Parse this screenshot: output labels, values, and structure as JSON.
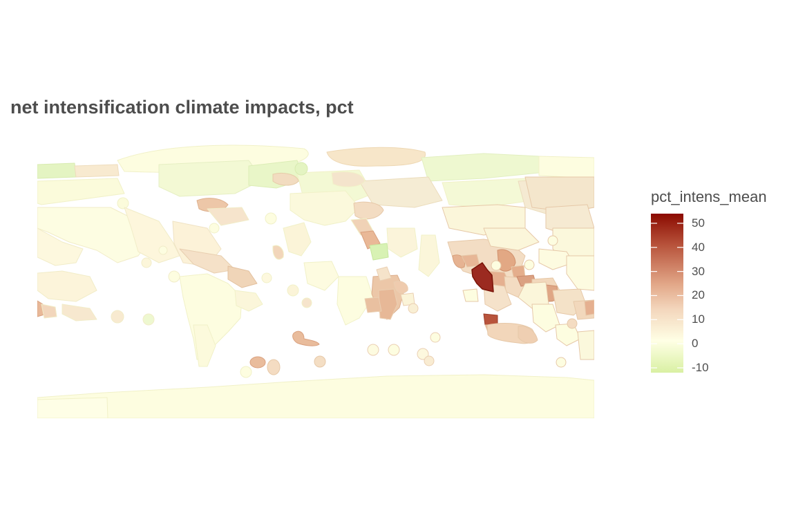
{
  "title": "net intensification climate impacts, pct",
  "legend": {
    "title": "pct_intens_mean",
    "ticks": [
      50,
      40,
      30,
      20,
      10,
      0,
      -10
    ],
    "tick_labels": [
      "50",
      "40",
      "30",
      "20",
      "10",
      "0",
      "-10"
    ],
    "range": [
      -12,
      54
    ],
    "colors": {
      "low": "#d9f0a3",
      "mid": "#ffffe5",
      "high": "#8b0a00"
    }
  },
  "chart_data": {
    "type": "choropleth",
    "variable": "pct_intens_mean",
    "scale": "diverging (green → cream → dark red)"
  }
}
